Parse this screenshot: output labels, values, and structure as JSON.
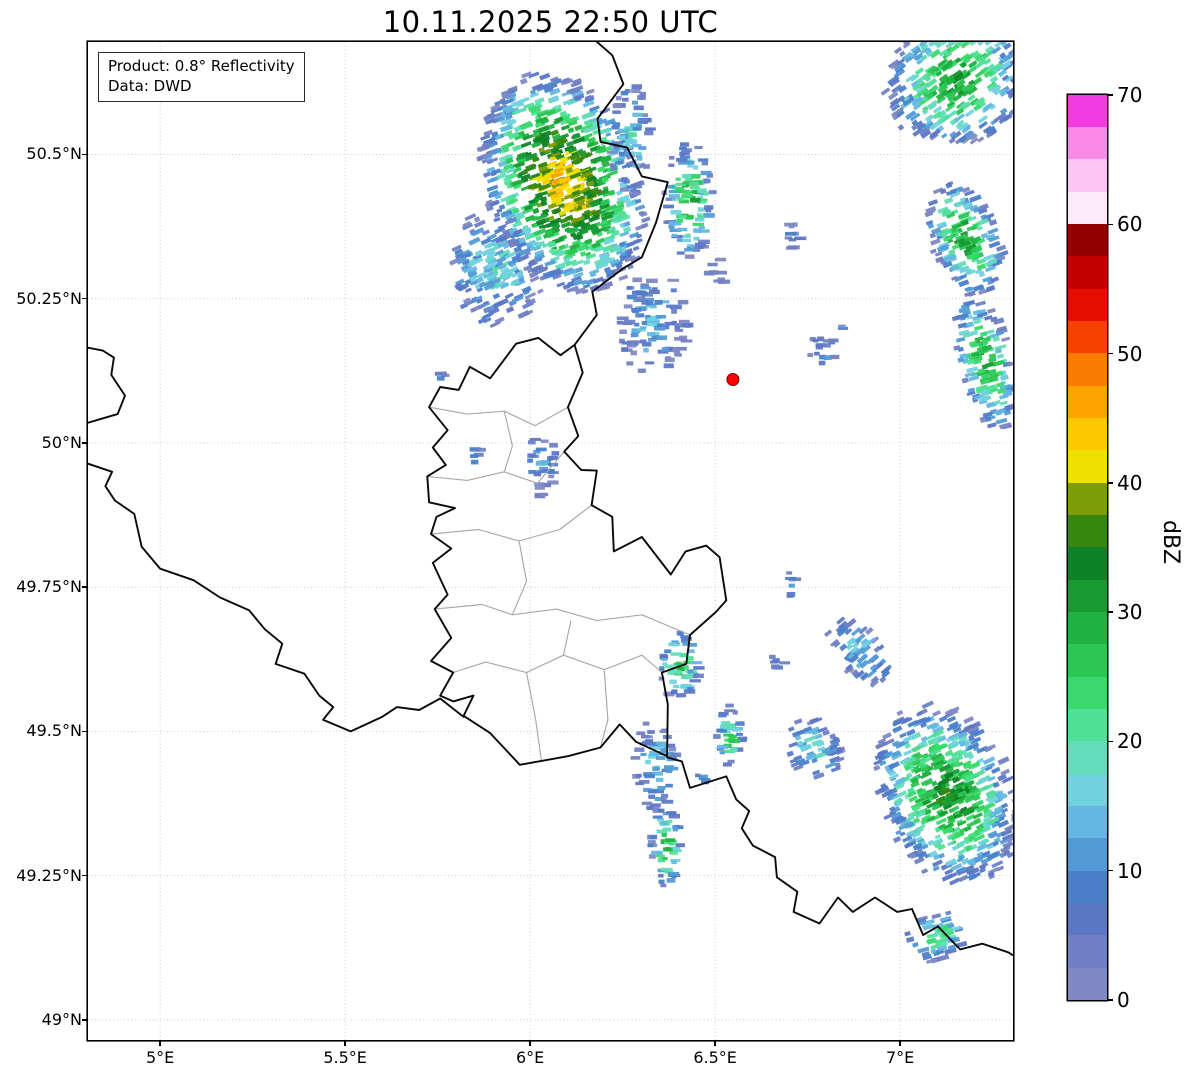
{
  "title": "10.11.2025 22:50 UTC",
  "info_box": {
    "line1": "Product: 0.8° Reflectivity",
    "line2": "Data: DWD"
  },
  "colorbar": {
    "label": "dBZ",
    "min": 0,
    "max": 70,
    "step": 2.5,
    "tick_values": [
      0,
      10,
      20,
      30,
      40,
      50,
      60,
      70
    ],
    "colors": [
      "#8189c4",
      "#6f7fc4",
      "#5c77c6",
      "#4b7fca",
      "#539bd6",
      "#63b7e0",
      "#71d2de",
      "#63dcba",
      "#4fdf95",
      "#3bd96d",
      "#2cc653",
      "#20b140",
      "#169a31",
      "#0e8226",
      "#35880f",
      "#7d9c07",
      "#f0e000",
      "#fec800",
      "#fda300",
      "#fb7c00",
      "#f74100",
      "#e60e00",
      "#c20000",
      "#940000",
      "#fdeaf8",
      "#fcc4f2",
      "#f98ae9",
      "#f13ce2"
    ]
  },
  "map": {
    "extent": {
      "lon_min": 4.805,
      "lon_max": 7.305,
      "lat_min": 48.965,
      "lat_max": 50.695
    },
    "x_ticks": [
      {
        "lon": 5.0,
        "label": "5°E"
      },
      {
        "lon": 5.5,
        "label": "5.5°E"
      },
      {
        "lon": 6.0,
        "label": "6°E"
      },
      {
        "lon": 6.5,
        "label": "6.5°E"
      },
      {
        "lon": 7.0,
        "label": "7°E"
      }
    ],
    "y_ticks": [
      {
        "lat": 49.0,
        "label": "49°N"
      },
      {
        "lat": 49.25,
        "label": "49.25°N"
      },
      {
        "lat": 49.5,
        "label": "49.5°N"
      },
      {
        "lat": 49.75,
        "label": "49.75°N"
      },
      {
        "lat": 50.0,
        "label": "50°N"
      },
      {
        "lat": 50.25,
        "label": "50.25°N"
      },
      {
        "lat": 50.5,
        "label": "50.5°N"
      }
    ],
    "radar_marker": {
      "lon": 6.548,
      "lat": 50.11,
      "color": "#ff0000"
    },
    "country_borders": [
      [
        [
          4.805,
          50.165
        ],
        [
          4.845,
          50.16
        ],
        [
          4.875,
          50.148
        ],
        [
          4.868,
          50.118
        ],
        [
          4.905,
          50.082
        ],
        [
          4.885,
          50.05
        ],
        [
          4.842,
          50.042
        ],
        [
          4.805,
          50.035
        ]
      ],
      [
        [
          4.805,
          49.964
        ],
        [
          4.87,
          49.95
        ],
        [
          4.852,
          49.925
        ],
        [
          4.878,
          49.9
        ],
        [
          4.93,
          49.877
        ],
        [
          4.95,
          49.82
        ],
        [
          5.0,
          49.782
        ],
        [
          5.09,
          49.762
        ],
        [
          5.162,
          49.732
        ],
        [
          5.24,
          49.71
        ],
        [
          5.283,
          49.677
        ],
        [
          5.33,
          49.652
        ],
        [
          5.312,
          49.617
        ],
        [
          5.39,
          49.6
        ],
        [
          5.43,
          49.562
        ],
        [
          5.468,
          49.542
        ],
        [
          5.44,
          49.52
        ],
        [
          5.515,
          49.5
        ],
        [
          5.6,
          49.525
        ],
        [
          5.64,
          49.542
        ],
        [
          5.7,
          49.537
        ],
        [
          5.757,
          49.557
        ],
        [
          5.82,
          49.525
        ]
      ],
      [
        [
          6.12,
          50.17
        ],
        [
          6.142,
          50.122
        ],
        [
          6.102,
          50.062
        ],
        [
          6.13,
          50.012
        ],
        [
          6.092,
          49.985
        ],
        [
          6.138,
          49.953
        ],
        [
          6.18,
          49.952
        ],
        [
          6.166,
          49.892
        ],
        [
          6.222,
          49.872
        ],
        [
          6.226,
          49.812
        ],
        [
          6.302,
          49.837
        ],
        [
          6.38,
          49.772
        ],
        [
          6.42,
          49.812
        ],
        [
          6.476,
          49.822
        ],
        [
          6.512,
          49.802
        ],
        [
          6.53,
          49.727
        ],
        [
          6.502,
          49.707
        ],
        [
          6.432,
          49.667
        ],
        [
          6.422,
          49.617
        ],
        [
          6.356,
          49.602
        ],
        [
          6.372,
          49.547
        ],
        [
          6.37,
          49.457
        ],
        [
          6.286,
          49.482
        ],
        [
          6.242,
          49.512
        ],
        [
          6.19,
          49.472
        ],
        [
          6.102,
          49.457
        ],
        [
          6.042,
          49.45
        ],
        [
          5.972,
          49.442
        ],
        [
          5.892,
          49.497
        ],
        [
          5.82,
          49.527
        ],
        [
          5.847,
          49.562
        ],
        [
          5.792,
          49.552
        ],
        [
          5.757,
          49.562
        ],
        [
          5.792,
          49.602
        ],
        [
          5.732,
          49.622
        ],
        [
          5.787,
          49.662
        ],
        [
          5.742,
          49.712
        ],
        [
          5.777,
          49.737
        ],
        [
          5.737,
          49.792
        ],
        [
          5.787,
          49.817
        ],
        [
          5.732,
          49.842
        ],
        [
          5.747,
          49.872
        ],
        [
          5.797,
          49.887
        ],
        [
          5.727,
          49.897
        ],
        [
          5.722,
          49.942
        ],
        [
          5.772,
          49.962
        ],
        [
          5.737,
          49.992
        ],
        [
          5.777,
          50.022
        ],
        [
          5.727,
          50.062
        ],
        [
          5.757,
          50.097
        ],
        [
          5.807,
          50.092
        ],
        [
          5.837,
          50.132
        ],
        [
          5.892,
          50.112
        ],
        [
          5.962,
          50.172
        ],
        [
          6.022,
          50.182
        ],
        [
          6.082,
          50.152
        ],
        [
          6.12,
          50.17
        ]
      ],
      [
        [
          6.12,
          50.17
        ],
        [
          6.18,
          50.222
        ],
        [
          6.168,
          50.262
        ],
        [
          6.25,
          50.302
        ],
        [
          6.302,
          50.322
        ],
        [
          6.34,
          50.382
        ],
        [
          6.372,
          50.452
        ],
        [
          6.302,
          50.462
        ],
        [
          6.262,
          50.512
        ],
        [
          6.19,
          50.522
        ],
        [
          6.182,
          50.562
        ],
        [
          6.252,
          50.622
        ],
        [
          6.222,
          50.672
        ],
        [
          6.17,
          50.701
        ]
      ],
      [
        [
          6.37,
          49.455
        ],
        [
          6.41,
          49.448
        ],
        [
          6.432,
          49.402
        ],
        [
          6.53,
          49.422
        ],
        [
          6.557,
          49.382
        ],
        [
          6.592,
          49.362
        ],
        [
          6.572,
          49.332
        ],
        [
          6.602,
          49.302
        ],
        [
          6.662,
          49.282
        ],
        [
          6.667,
          49.247
        ],
        [
          6.722,
          49.222
        ],
        [
          6.712,
          49.187
        ],
        [
          6.782,
          49.167
        ],
        [
          6.832,
          49.212
        ],
        [
          6.872,
          49.187
        ],
        [
          6.932,
          49.212
        ],
        [
          6.992,
          49.187
        ],
        [
          7.032,
          49.192
        ],
        [
          7.062,
          49.147
        ],
        [
          7.102,
          49.162
        ],
        [
          7.162,
          49.122
        ],
        [
          7.222,
          49.132
        ],
        [
          7.292,
          49.117
        ],
        [
          7.305,
          49.112
        ]
      ]
    ],
    "inner_borders": [
      [
        [
          5.727,
          50.062
        ],
        [
          5.83,
          50.05
        ],
        [
          5.93,
          50.055
        ],
        [
          6.013,
          50.03
        ],
        [
          6.102,
          50.062
        ]
      ],
      [
        [
          5.722,
          49.942
        ],
        [
          5.83,
          49.935
        ],
        [
          5.93,
          49.95
        ],
        [
          6.02,
          49.93
        ],
        [
          6.092,
          49.985
        ]
      ],
      [
        [
          5.93,
          50.055
        ],
        [
          5.952,
          49.995
        ],
        [
          5.93,
          49.95
        ]
      ],
      [
        [
          5.732,
          49.842
        ],
        [
          5.86,
          49.85
        ],
        [
          5.97,
          49.83
        ],
        [
          6.08,
          49.85
        ],
        [
          6.166,
          49.892
        ]
      ],
      [
        [
          5.97,
          49.83
        ],
        [
          5.99,
          49.76
        ],
        [
          5.952,
          49.702
        ]
      ],
      [
        [
          5.742,
          49.712
        ],
        [
          5.87,
          49.72
        ],
        [
          5.952,
          49.702
        ],
        [
          6.07,
          49.712
        ],
        [
          6.18,
          49.692
        ],
        [
          6.302,
          49.702
        ],
        [
          6.432,
          49.667
        ]
      ],
      [
        [
          5.792,
          49.602
        ],
        [
          5.88,
          49.62
        ],
        [
          5.99,
          49.602
        ],
        [
          6.09,
          49.632
        ],
        [
          6.2,
          49.607
        ],
        [
          6.302,
          49.632
        ],
        [
          6.356,
          49.602
        ]
      ],
      [
        [
          5.99,
          49.602
        ],
        [
          6.015,
          49.52
        ],
        [
          6.03,
          49.45
        ]
      ],
      [
        [
          6.09,
          49.632
        ],
        [
          6.11,
          49.692
        ]
      ],
      [
        [
          6.2,
          49.607
        ],
        [
          6.21,
          49.52
        ],
        [
          6.19,
          49.472
        ]
      ]
    ],
    "cells": [
      {
        "lon": 6.09,
        "lat": 50.45,
        "rx": 0.21,
        "ry": 0.2,
        "max_dbz": 43,
        "density": 1.25,
        "angle": -20
      },
      {
        "lon": 5.9,
        "lat": 50.3,
        "rx": 0.13,
        "ry": 0.1,
        "max_dbz": 17,
        "density": 0.85,
        "angle": -25
      },
      {
        "lon": 6.27,
        "lat": 50.53,
        "rx": 0.055,
        "ry": 0.1,
        "max_dbz": 16,
        "density": 0.9,
        "angle": 0
      },
      {
        "lon": 6.43,
        "lat": 50.42,
        "rx": 0.065,
        "ry": 0.105,
        "max_dbz": 30,
        "density": 1.0,
        "angle": 0
      },
      {
        "lon": 6.33,
        "lat": 50.21,
        "rx": 0.1,
        "ry": 0.09,
        "max_dbz": 14,
        "density": 0.8,
        "angle": 0
      },
      {
        "lon": 6.5,
        "lat": 50.295,
        "rx": 0.03,
        "ry": 0.03,
        "max_dbz": 8,
        "density": 0.7,
        "angle": 0
      },
      {
        "lon": 6.7,
        "lat": 50.36,
        "rx": 0.033,
        "ry": 0.027,
        "max_dbz": 8,
        "density": 0.7,
        "angle": 0
      },
      {
        "lon": 6.79,
        "lat": 50.16,
        "rx": 0.05,
        "ry": 0.027,
        "max_dbz": 10,
        "density": 0.8,
        "angle": 0
      },
      {
        "lon": 7.15,
        "lat": 50.63,
        "rx": 0.2,
        "ry": 0.115,
        "max_dbz": 30,
        "density": 1.0,
        "angle": -35
      },
      {
        "lon": 7.175,
        "lat": 50.355,
        "rx": 0.09,
        "ry": 0.11,
        "max_dbz": 30,
        "density": 1.0,
        "angle": -20
      },
      {
        "lon": 7.23,
        "lat": 50.14,
        "rx": 0.075,
        "ry": 0.125,
        "max_dbz": 30,
        "density": 1.0,
        "angle": -15
      },
      {
        "lon": 6.03,
        "lat": 49.96,
        "rx": 0.05,
        "ry": 0.055,
        "max_dbz": 11,
        "density": 0.8,
        "angle": 0
      },
      {
        "lon": 5.85,
        "lat": 49.98,
        "rx": 0.022,
        "ry": 0.02,
        "max_dbz": 7,
        "density": 0.8,
        "angle": 0
      },
      {
        "lon": 5.76,
        "lat": 50.12,
        "rx": 0.025,
        "ry": 0.015,
        "max_dbz": 6,
        "density": 0.8,
        "angle": 0
      },
      {
        "lon": 6.7,
        "lat": 49.755,
        "rx": 0.028,
        "ry": 0.022,
        "max_dbz": 9,
        "density": 0.8,
        "angle": 0
      },
      {
        "lon": 6.405,
        "lat": 49.615,
        "rx": 0.055,
        "ry": 0.065,
        "max_dbz": 26,
        "density": 1.0,
        "angle": 0
      },
      {
        "lon": 6.895,
        "lat": 49.64,
        "rx": 0.065,
        "ry": 0.075,
        "max_dbz": 15,
        "density": 0.85,
        "angle": -40
      },
      {
        "lon": 6.67,
        "lat": 49.62,
        "rx": 0.025,
        "ry": 0.02,
        "max_dbz": 10,
        "density": 0.8,
        "angle": 0
      },
      {
        "lon": 6.54,
        "lat": 49.49,
        "rx": 0.035,
        "ry": 0.055,
        "max_dbz": 26,
        "density": 1.1,
        "angle": 0
      },
      {
        "lon": 6.765,
        "lat": 49.47,
        "rx": 0.075,
        "ry": 0.06,
        "max_dbz": 16,
        "density": 0.9,
        "angle": -20
      },
      {
        "lon": 6.34,
        "lat": 49.44,
        "rx": 0.06,
        "ry": 0.085,
        "max_dbz": 15,
        "density": 0.85,
        "angle": 0
      },
      {
        "lon": 6.37,
        "lat": 49.3,
        "rx": 0.045,
        "ry": 0.075,
        "max_dbz": 27,
        "density": 1.0,
        "angle": 0
      },
      {
        "lon": 7.125,
        "lat": 49.39,
        "rx": 0.18,
        "ry": 0.165,
        "max_dbz": 33,
        "density": 1.15,
        "angle": -25
      },
      {
        "lon": 7.1,
        "lat": 49.145,
        "rx": 0.085,
        "ry": 0.045,
        "max_dbz": 22,
        "density": 0.9,
        "angle": -15
      },
      {
        "lon": 6.46,
        "lat": 49.42,
        "rx": 0.025,
        "ry": 0.02,
        "max_dbz": 9,
        "density": 0.8,
        "angle": 0
      },
      {
        "lon": 6.84,
        "lat": 50.2,
        "rx": 0.015,
        "ry": 0.012,
        "max_dbz": 6,
        "density": 0.8,
        "angle": 0
      }
    ]
  }
}
